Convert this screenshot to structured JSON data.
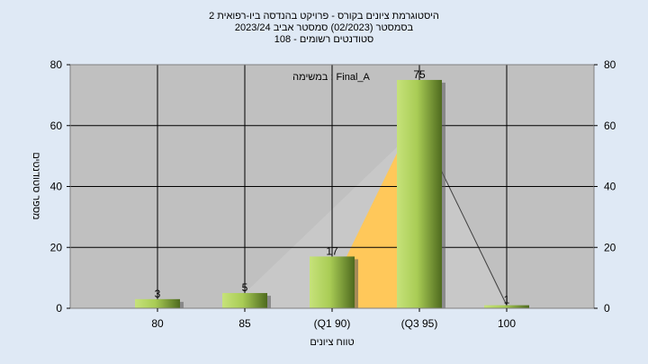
{
  "chart_data": {
    "type": "bar",
    "title_lines": [
      "היסטוגרמת ציונים בקורס - פרויקט בהנדסה ביו-רפואית 2",
      "בסמסטר  (02/2023)  סמסטר אביב 2023/24",
      "סטודנטים רשומים - 108"
    ],
    "annotation": "במשימה : Final_A",
    "categories": [
      "80",
      "85",
      "(Q1 90)",
      "(Q3 95)",
      "100"
    ],
    "values": [
      3,
      5,
      17,
      75,
      1
    ],
    "xlabel": "טווח ציונים",
    "ylabel": "מספר סטודנטים",
    "ylim": [
      0,
      80
    ],
    "yticks": [
      0,
      20,
      40,
      60,
      80
    ],
    "grid": true,
    "colors": {
      "plot_bg": "#c0c0c0",
      "bar_light": "#c6e27a",
      "bar_dark": "#4e6a1e",
      "iqr_fill": "#ffc85a",
      "outer_fill": "#c8c8c8",
      "page_bg": "#dfe9f5"
    }
  }
}
